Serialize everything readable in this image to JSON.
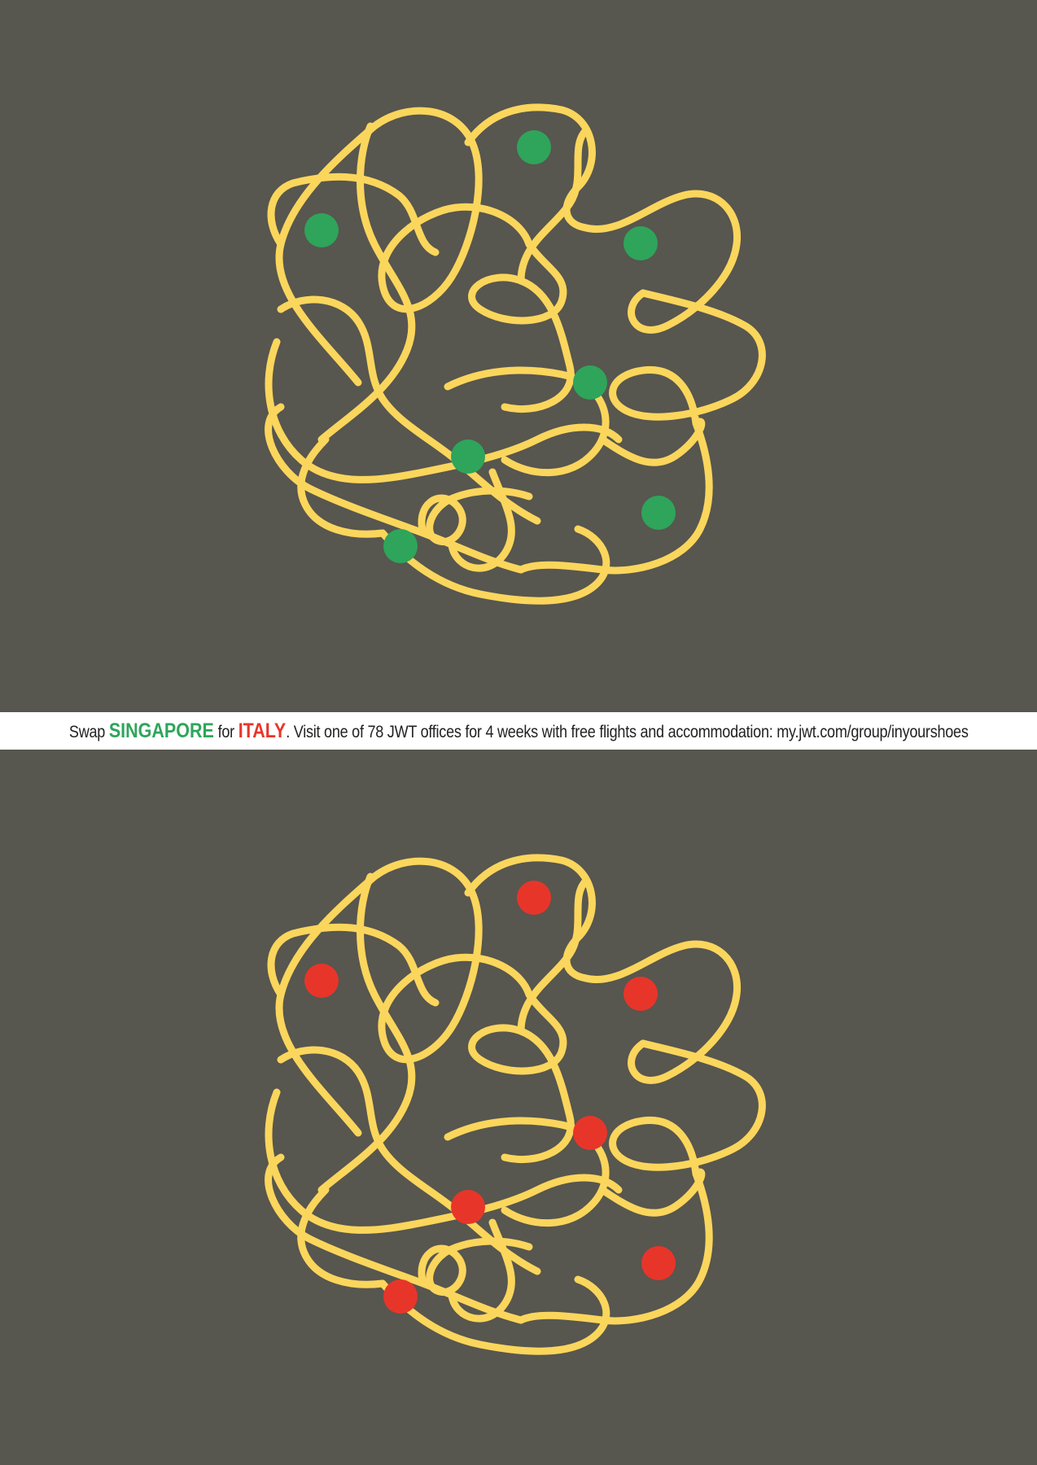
{
  "banner": {
    "swap_word": "Swap",
    "from_country": "SINGAPORE",
    "for_word": "for",
    "to_country": "ITALY",
    "message": ". Visit one of 78 JWT offices for 4 weeks with free flights and accommodation: my.jwt.com/group/inyourshoes"
  },
  "colors": {
    "background": "#57564f",
    "noodle": "#fbd65c",
    "singapore_dot": "#2ea55a",
    "italy_dot": "#e8352a",
    "banner_bg": "#ffffff",
    "banner_text": "#222222"
  },
  "illustrations": [
    {
      "name": "singapore-noodles",
      "dot_color": "#2ea55a"
    },
    {
      "name": "italy-noodles",
      "dot_color": "#e8352a"
    }
  ]
}
